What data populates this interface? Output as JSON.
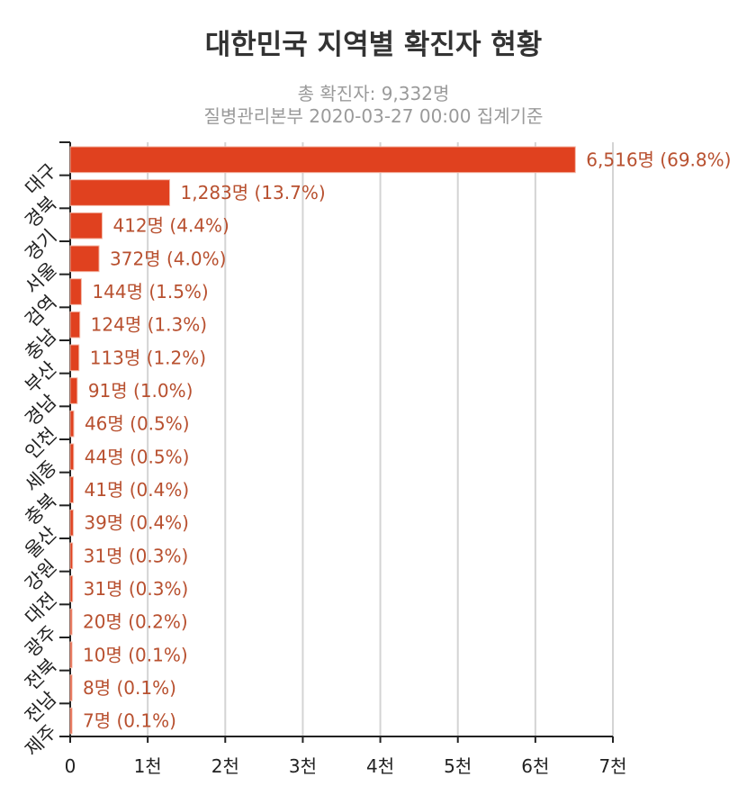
{
  "chart_data": {
    "type": "bar",
    "orientation": "horizontal",
    "title": "대한민국 지역별 확진자 현황",
    "subtitle": [
      "총 확진자: 9,332명",
      "질병관리본부 2020-03-27 00:00 집계기준"
    ],
    "categories": [
      "대구",
      "경북",
      "경기",
      "서울",
      "검역",
      "충남",
      "부산",
      "경남",
      "인천",
      "세종",
      "충북",
      "울산",
      "강원",
      "대전",
      "광주",
      "전북",
      "전남",
      "제주"
    ],
    "values": [
      6516,
      1283,
      412,
      372,
      144,
      124,
      113,
      91,
      46,
      44,
      41,
      39,
      31,
      31,
      20,
      10,
      8,
      7
    ],
    "data_labels": [
      "6,516명 (69.8%)",
      "1,283명 (13.7%)",
      "412명 (4.4%)",
      "372명 (4.0%)",
      "144명 (1.5%)",
      "124명 (1.3%)",
      "113명 (1.2%)",
      "91명 (1.0%)",
      "46명 (0.5%)",
      "44명 (0.5%)",
      "41명 (0.4%)",
      "39명 (0.4%)",
      "31명 (0.3%)",
      "31명 (0.3%)",
      "20명 (0.2%)",
      "10명 (0.1%)",
      "8명 (0.1%)",
      "7명 (0.1%)"
    ],
    "xticks": [
      0,
      1000,
      2000,
      3000,
      4000,
      5000,
      6000,
      7000
    ],
    "xtick_labels": [
      "0",
      "1천",
      "2천",
      "3천",
      "4천",
      "5천",
      "6천",
      "7천"
    ],
    "xlim": [
      0,
      7000
    ],
    "grid": true,
    "bar_color": "#e0411f",
    "label_color": "#b8502f"
  }
}
